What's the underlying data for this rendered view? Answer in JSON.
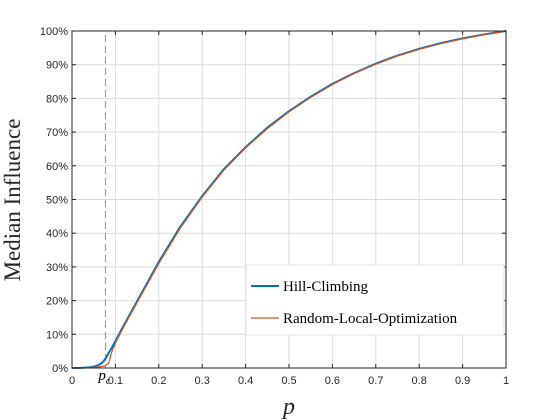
{
  "chart_data": {
    "type": "line",
    "title": "",
    "xlabel": "p",
    "ylabel": "Median Influence",
    "xlim": [
      0,
      1
    ],
    "ylim": [
      0,
      100
    ],
    "x_ticks": [
      "0",
      "0.1",
      "0.2",
      "0.3",
      "0.4",
      "0.5",
      "0.6",
      "0.7",
      "0.8",
      "0.9",
      "1"
    ],
    "x_tick_values": [
      0,
      0.1,
      0.2,
      0.3,
      0.4,
      0.5,
      0.6,
      0.7,
      0.8,
      0.9,
      1
    ],
    "y_ticks": [
      "0%",
      "10%",
      "20%",
      "30%",
      "40%",
      "50%",
      "60%",
      "70%",
      "80%",
      "90%",
      "100%"
    ],
    "y_tick_values": [
      0,
      10,
      20,
      30,
      40,
      50,
      60,
      70,
      80,
      90,
      100
    ],
    "grid": true,
    "legend_position": "bottom-right",
    "threshold": {
      "label": "p_c",
      "label_main": "p",
      "label_sub": "c",
      "x": 0.077,
      "color": "#5cb85c",
      "style": "dashed"
    },
    "series": [
      {
        "name": "Hill-Climbing",
        "color": "#0072BD",
        "x": [
          0,
          0.02,
          0.04,
          0.05,
          0.06,
          0.07,
          0.075,
          0.08,
          0.085,
          0.09,
          0.1,
          0.12,
          0.15,
          0.2,
          0.25,
          0.3,
          0.35,
          0.4,
          0.45,
          0.5,
          0.55,
          0.6,
          0.65,
          0.7,
          0.75,
          0.8,
          0.85,
          0.9,
          0.95,
          1.0
        ],
        "values": [
          0,
          0.05,
          0.2,
          0.4,
          0.8,
          1.6,
          2.4,
          3.4,
          4.6,
          5.6,
          8.0,
          12.8,
          19.8,
          31.5,
          42.0,
          51.0,
          59.0,
          65.5,
          71.3,
          76.2,
          80.5,
          84.3,
          87.5,
          90.3,
          92.7,
          94.7,
          96.4,
          97.8,
          99.0,
          100.0
        ]
      },
      {
        "name": "Random-Local-Optimization",
        "color": "#D95319",
        "x": [
          0,
          0.02,
          0.04,
          0.06,
          0.075,
          0.08,
          0.085,
          0.09,
          0.1,
          0.12,
          0.15,
          0.2,
          0.25,
          0.3,
          0.35,
          0.4,
          0.45,
          0.5,
          0.55,
          0.6,
          0.65,
          0.7,
          0.75,
          0.8,
          0.85,
          0.9,
          0.95,
          1.0
        ],
        "values": [
          0,
          0.02,
          0.1,
          0.3,
          0.6,
          0.9,
          1.6,
          4.2,
          7.4,
          12.4,
          19.4,
          31.0,
          41.6,
          50.7,
          58.7,
          65.3,
          71.0,
          76.0,
          80.3,
          84.1,
          87.4,
          90.2,
          92.6,
          94.6,
          96.3,
          97.7,
          99.0,
          100.0
        ]
      }
    ]
  }
}
